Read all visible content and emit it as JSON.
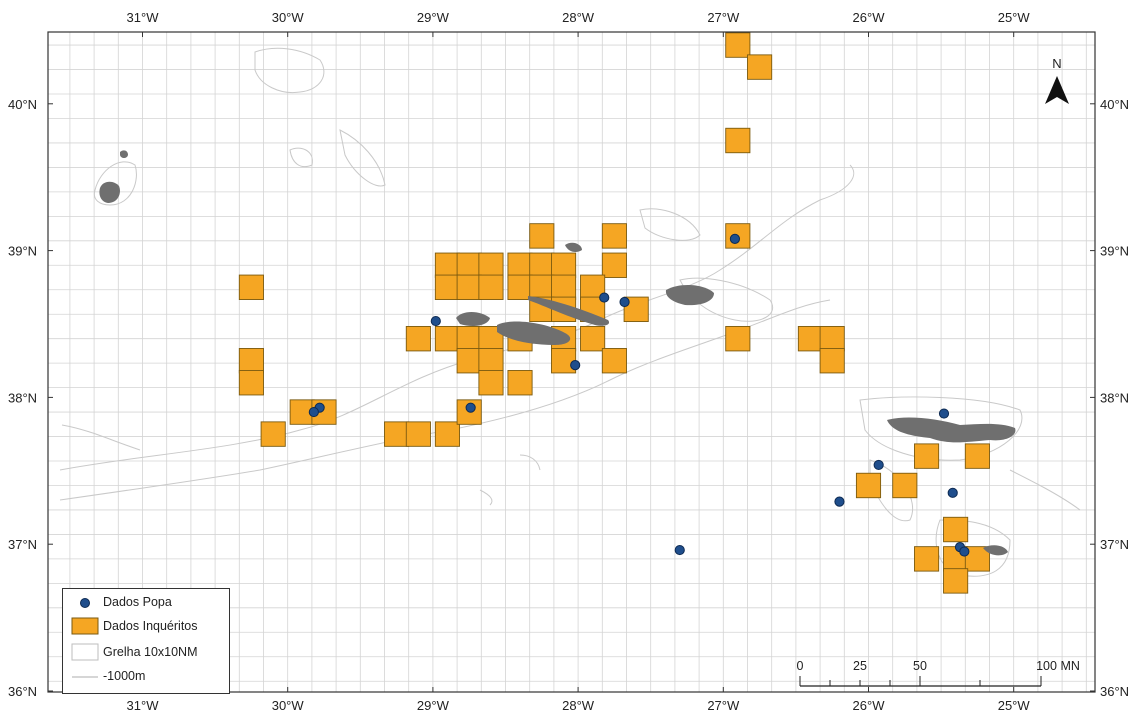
{
  "map": {
    "lon_labels": [
      "31°W",
      "30°W",
      "29°W",
      "28°W",
      "27°W",
      "26°W",
      "25°W"
    ],
    "lat_labels": [
      "36°N",
      "37°N",
      "38°N",
      "39°N",
      "40°N"
    ],
    "north_label": "N",
    "colors": {
      "grid": "#d4d4d4",
      "grid_cell_fill": "#f5a623",
      "grid_cell_stroke": "#7a5a10",
      "island": "#6f6f6f",
      "bathymetry": "#c9c9c9",
      "popa_point": "#1f4e8c",
      "frame": "#333333"
    },
    "inqueritos_cells": [
      [
        -26.9,
        40.4
      ],
      [
        -26.75,
        40.25
      ],
      [
        -26.9,
        39.75
      ],
      [
        -30.25,
        38.75
      ],
      [
        -30.25,
        38.25
      ],
      [
        -30.25,
        38.1
      ],
      [
        -29.9,
        37.9
      ],
      [
        -29.75,
        37.9
      ],
      [
        -30.1,
        37.75
      ],
      [
        -29.25,
        37.75
      ],
      [
        -29.1,
        37.75
      ],
      [
        -28.9,
        37.75
      ],
      [
        -28.75,
        37.9
      ],
      [
        -28.9,
        38.9
      ],
      [
        -28.75,
        38.9
      ],
      [
        -28.6,
        38.9
      ],
      [
        -28.4,
        38.9
      ],
      [
        -28.25,
        38.9
      ],
      [
        -28.1,
        38.9
      ],
      [
        -28.25,
        39.1
      ],
      [
        -27.75,
        39.1
      ],
      [
        -27.75,
        38.9
      ],
      [
        -28.9,
        38.75
      ],
      [
        -28.75,
        38.75
      ],
      [
        -28.6,
        38.75
      ],
      [
        -28.4,
        38.75
      ],
      [
        -28.25,
        38.75
      ],
      [
        -28.1,
        38.75
      ],
      [
        -27.9,
        38.75
      ],
      [
        -28.25,
        38.6
      ],
      [
        -28.1,
        38.6
      ],
      [
        -27.9,
        38.6
      ],
      [
        -27.6,
        38.6
      ],
      [
        -29.1,
        38.4
      ],
      [
        -28.9,
        38.4
      ],
      [
        -28.75,
        38.4
      ],
      [
        -28.6,
        38.4
      ],
      [
        -28.4,
        38.4
      ],
      [
        -28.1,
        38.4
      ],
      [
        -27.9,
        38.4
      ],
      [
        -28.75,
        38.25
      ],
      [
        -28.6,
        38.25
      ],
      [
        -28.1,
        38.25
      ],
      [
        -27.75,
        38.25
      ],
      [
        -28.6,
        38.1
      ],
      [
        -28.4,
        38.1
      ],
      [
        -26.9,
        39.1
      ],
      [
        -26.9,
        38.4
      ],
      [
        -26.4,
        38.4
      ],
      [
        -26.25,
        38.4
      ],
      [
        -26.25,
        38.25
      ],
      [
        -25.6,
        37.6
      ],
      [
        -25.25,
        37.6
      ],
      [
        -26.0,
        37.4
      ],
      [
        -25.75,
        37.4
      ],
      [
        -25.4,
        37.1
      ],
      [
        -25.6,
        36.9
      ],
      [
        -25.4,
        36.9
      ],
      [
        -25.25,
        36.9
      ],
      [
        -25.4,
        36.75
      ]
    ],
    "popa_points": [
      [
        -26.92,
        39.08
      ],
      [
        -27.82,
        38.68
      ],
      [
        -27.68,
        38.65
      ],
      [
        -28.98,
        38.52
      ],
      [
        -28.02,
        38.22
      ],
      [
        -29.78,
        37.93
      ],
      [
        -29.82,
        37.9
      ],
      [
        -28.74,
        37.93
      ],
      [
        -25.48,
        37.89
      ],
      [
        -25.93,
        37.54
      ],
      [
        -25.42,
        37.35
      ],
      [
        -26.2,
        37.29
      ],
      [
        -27.3,
        36.96
      ],
      [
        -25.37,
        36.98
      ],
      [
        -25.34,
        36.95
      ]
    ]
  },
  "legend": {
    "title_popa": "Dados Popa",
    "title_inq": "Dados Inquéritos",
    "title_grid": "Grelha 10x10NM",
    "title_bath": "-1000m"
  },
  "scalebar": {
    "labels": [
      "0",
      "25",
      "50",
      "100 MN"
    ]
  }
}
